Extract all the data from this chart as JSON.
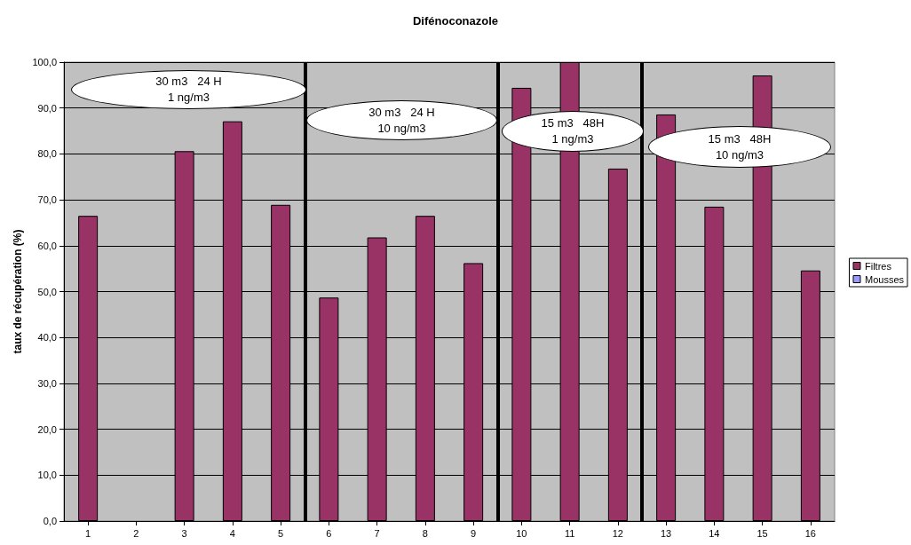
{
  "chart_data": {
    "type": "bar",
    "title": "Difénoconazole",
    "ylabel": "taux de récupération (%)",
    "x": [
      1,
      2,
      3,
      4,
      5,
      6,
      7,
      8,
      9,
      10,
      11,
      12,
      13,
      14,
      15,
      16
    ],
    "xlim": [
      0.5,
      16.5
    ],
    "xticks": [
      1,
      2,
      3,
      4,
      5,
      6,
      7,
      8,
      9,
      10,
      11,
      12,
      13,
      14,
      15,
      16
    ],
    "series": [
      {
        "name": "Filtres",
        "color": "#993366",
        "values": [
          66.5,
          null,
          80.6,
          87.1,
          68.9,
          48.7,
          61.8,
          66.5,
          56.2,
          94.4,
          100,
          76.8,
          88.6,
          68.5,
          97.1,
          54.6
        ]
      },
      {
        "name": "Mousses",
        "color": "#9999ff",
        "values": [
          null,
          null,
          null,
          null,
          null,
          null,
          null,
          null,
          null,
          null,
          null,
          null,
          null,
          null,
          null,
          null
        ]
      }
    ],
    "ylim": [
      0,
      100
    ],
    "yticks": [
      {
        "value": 0,
        "label": "0,0"
      },
      {
        "value": 10,
        "label": "10,0"
      },
      {
        "value": 20,
        "label": "20,0"
      },
      {
        "value": 30,
        "label": "30,0"
      },
      {
        "value": 40,
        "label": "40,0"
      },
      {
        "value": 50,
        "label": "50,0"
      },
      {
        "value": 60,
        "label": "60,0"
      },
      {
        "value": 70,
        "label": "70,0"
      },
      {
        "value": 80,
        "label": "80,0"
      },
      {
        "value": 90,
        "label": "90,0"
      },
      {
        "value": 100,
        "label": "100,0"
      }
    ],
    "grid": "y",
    "legend": "right",
    "ref_lines": [
      {
        "axis": "x",
        "value": 5.5,
        "color": "#000000"
      },
      {
        "axis": "x",
        "value": 9.5,
        "color": "#000000"
      },
      {
        "axis": "x",
        "value": 12.5,
        "color": "#000000"
      }
    ],
    "annotations": [
      "30 m3   24 H\n1 ng/m3",
      "30 m3   24 H\n10 ng/m3",
      "15 m3   48H\n1 ng/m3",
      "15 m3   48H\n10 ng/m3"
    ]
  }
}
